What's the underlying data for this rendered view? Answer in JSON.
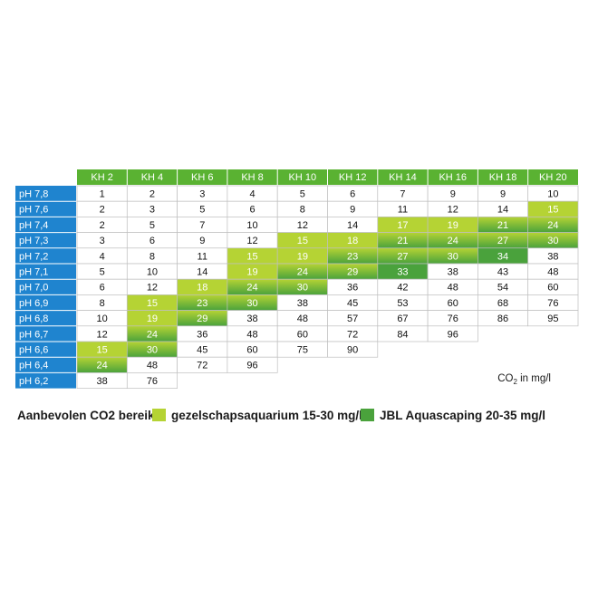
{
  "chart_data": {
    "type": "table",
    "title": "",
    "columns": [
      "KH 2",
      "KH 4",
      "KH 6",
      "KH 8",
      "KH 10",
      "KH 12",
      "KH 14",
      "KH 16",
      "KH 18",
      "KH 20"
    ],
    "rows": [
      {
        "label": "pH 7,8",
        "values": [
          "1",
          "2",
          "3",
          "4",
          "5",
          "6",
          "7",
          "9",
          "9",
          "10"
        ]
      },
      {
        "label": "pH 7,6",
        "values": [
          "2",
          "3",
          "5",
          "6",
          "8",
          "9",
          "11",
          "12",
          "14",
          "15"
        ]
      },
      {
        "label": "pH 7,4",
        "values": [
          "2",
          "5",
          "7",
          "10",
          "12",
          "14",
          "17",
          "19",
          "21",
          "24"
        ]
      },
      {
        "label": "pH 7,3",
        "values": [
          "3",
          "6",
          "9",
          "12",
          "15",
          "18",
          "21",
          "24",
          "27",
          "30"
        ]
      },
      {
        "label": "pH 7,2",
        "values": [
          "4",
          "8",
          "11",
          "15",
          "19",
          "23",
          "27",
          "30",
          "34",
          "38"
        ]
      },
      {
        "label": "pH 7,1",
        "values": [
          "5",
          "10",
          "14",
          "19",
          "24",
          "29",
          "33",
          "38",
          "43",
          "48"
        ]
      },
      {
        "label": "pH 7,0",
        "values": [
          "6",
          "12",
          "18",
          "24",
          "30",
          "36",
          "42",
          "48",
          "54",
          "60"
        ]
      },
      {
        "label": "pH 6,9",
        "values": [
          "8",
          "15",
          "23",
          "30",
          "38",
          "45",
          "53",
          "60",
          "68",
          "76"
        ]
      },
      {
        "label": "pH 6,8",
        "values": [
          "10",
          "19",
          "29",
          "38",
          "48",
          "57",
          "67",
          "76",
          "86",
          "95"
        ]
      },
      {
        "label": "pH 6,7",
        "values": [
          "12",
          "24",
          "36",
          "48",
          "60",
          "72",
          "84",
          "96",
          "",
          ""
        ]
      },
      {
        "label": "pH 6,6",
        "values": [
          "15",
          "30",
          "45",
          "60",
          "75",
          "90",
          "",
          "",
          "",
          ""
        ]
      },
      {
        "label": "pH 6,4",
        "values": [
          "24",
          "48",
          "72",
          "96",
          "",
          "",
          "",
          "",
          "",
          ""
        ]
      },
      {
        "label": "pH 6,2",
        "values": [
          "38",
          "76",
          "",
          "",
          "",
          "",
          "",
          "",
          "",
          ""
        ]
      }
    ],
    "ranges": {
      "community": [
        15,
        30
      ],
      "aquascaping": [
        20,
        35
      ]
    },
    "unit_main": "CO",
    "unit_sub": "2",
    "unit_rest": " in mg/l",
    "legend": {
      "heading": "Aanbevolen CO2 bereik:",
      "items": [
        {
          "label": "gezelschapsaquarium 15-30 mg/l",
          "color": "#b5d334"
        },
        {
          "label": "JBL Aquascaping 20-35 mg/l",
          "color": "#4aa23c"
        }
      ]
    },
    "colors": {
      "header_green": "#5ab232",
      "row_header_blue": "#1f84cf",
      "grid": "#bfbfbf",
      "light_green": "#b5d334",
      "dark_green": "#4aa23c"
    }
  }
}
